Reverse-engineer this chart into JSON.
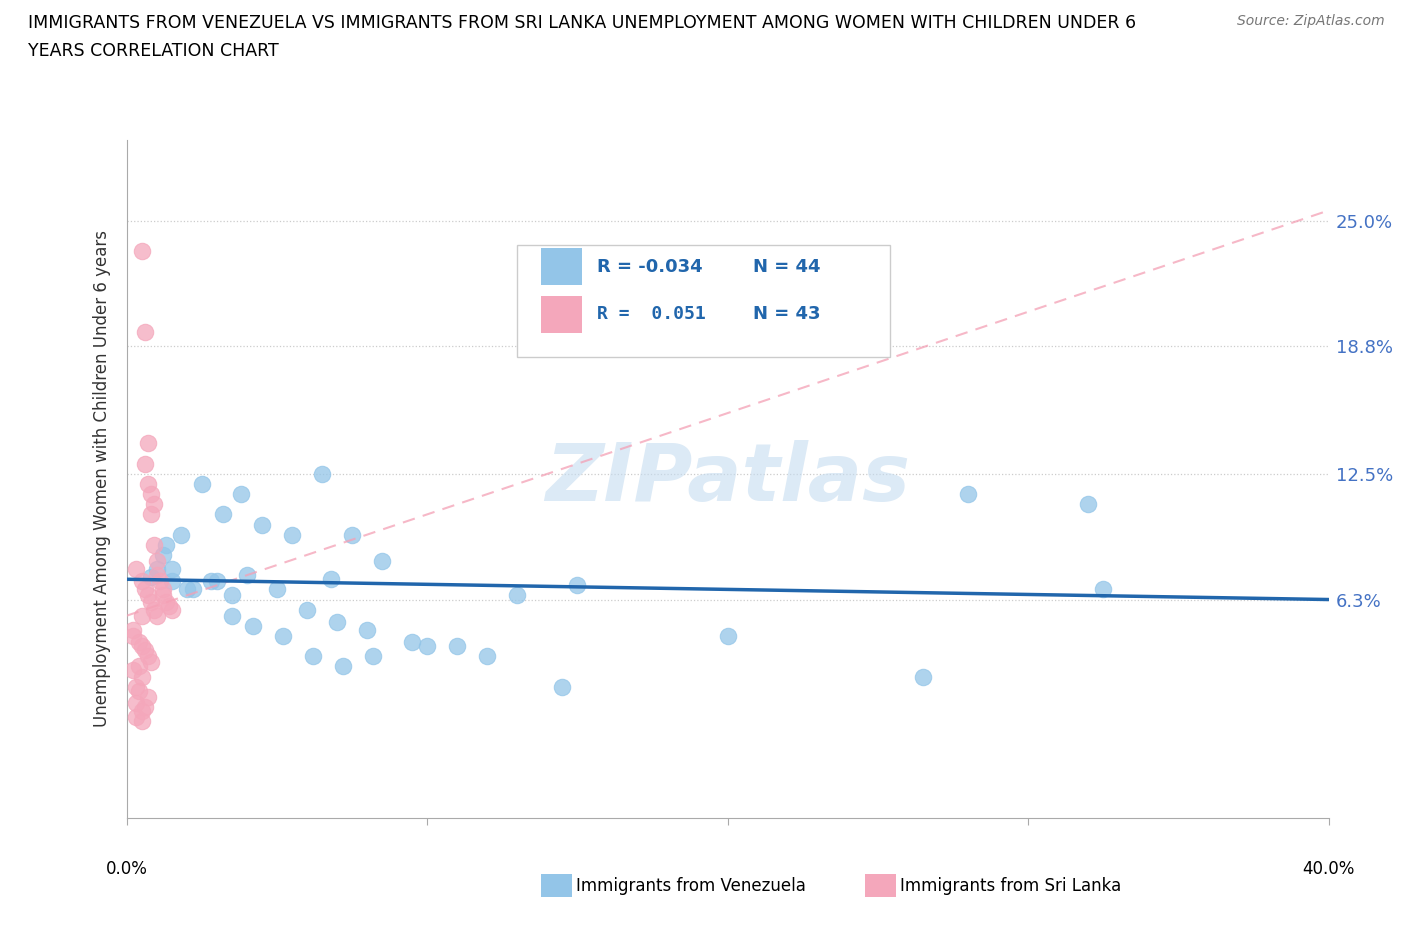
{
  "title_line1": "IMMIGRANTS FROM VENEZUELA VS IMMIGRANTS FROM SRI LANKA UNEMPLOYMENT AMONG WOMEN WITH CHILDREN UNDER 6",
  "title_line2": "YEARS CORRELATION CHART",
  "source": "Source: ZipAtlas.com",
  "ylabel": "Unemployment Among Women with Children Under 6 years",
  "xlim": [
    0.0,
    0.4
  ],
  "ylim": [
    -0.045,
    0.29
  ],
  "yticks": [
    0.063,
    0.125,
    0.188,
    0.25
  ],
  "ytick_labels": [
    "6.3%",
    "12.5%",
    "18.8%",
    "25.0%"
  ],
  "xtick_positions": [
    0.0,
    0.1,
    0.2,
    0.3,
    0.4
  ],
  "watermark_text": "ZIPatlas",
  "color_venezuela": "#93C5E8",
  "color_srilanka": "#F4A7BB",
  "color_trend_venezuela": "#2166AC",
  "color_trend_srilanka": "#F4A0B5",
  "venezuela_x": [
    0.008,
    0.01,
    0.012,
    0.013,
    0.015,
    0.018,
    0.02,
    0.022,
    0.025,
    0.028,
    0.03,
    0.032,
    0.035,
    0.035,
    0.038,
    0.04,
    0.042,
    0.045,
    0.05,
    0.052,
    0.055,
    0.06,
    0.062,
    0.065,
    0.068,
    0.07,
    0.072,
    0.075,
    0.08,
    0.082,
    0.085,
    0.095,
    0.1,
    0.11,
    0.12,
    0.13,
    0.145,
    0.15,
    0.2,
    0.265,
    0.28,
    0.32,
    0.325,
    0.015
  ],
  "venezuela_y": [
    0.074,
    0.078,
    0.085,
    0.09,
    0.072,
    0.095,
    0.068,
    0.068,
    0.12,
    0.072,
    0.072,
    0.105,
    0.055,
    0.065,
    0.115,
    0.075,
    0.05,
    0.1,
    0.068,
    0.045,
    0.095,
    0.058,
    0.035,
    0.125,
    0.073,
    0.052,
    0.03,
    0.095,
    0.048,
    0.035,
    0.082,
    0.042,
    0.04,
    0.04,
    0.035,
    0.065,
    0.02,
    0.07,
    0.045,
    0.025,
    0.115,
    0.11,
    0.068,
    0.078
  ],
  "srilanka_x": [
    0.002,
    0.002,
    0.003,
    0.003,
    0.003,
    0.004,
    0.004,
    0.004,
    0.005,
    0.005,
    0.005,
    0.005,
    0.005,
    0.005,
    0.005,
    0.006,
    0.006,
    0.006,
    0.006,
    0.006,
    0.007,
    0.007,
    0.007,
    0.007,
    0.007,
    0.008,
    0.008,
    0.008,
    0.008,
    0.009,
    0.009,
    0.009,
    0.01,
    0.01,
    0.01,
    0.011,
    0.012,
    0.012,
    0.013,
    0.014,
    0.015,
    0.002,
    0.003
  ],
  "srilanka_y": [
    0.048,
    0.028,
    0.02,
    0.012,
    0.005,
    0.042,
    0.03,
    0.018,
    0.235,
    0.072,
    0.055,
    0.04,
    0.025,
    0.008,
    0.003,
    0.195,
    0.13,
    0.068,
    0.038,
    0.01,
    0.14,
    0.12,
    0.065,
    0.035,
    0.015,
    0.115,
    0.105,
    0.062,
    0.032,
    0.11,
    0.09,
    0.058,
    0.082,
    0.075,
    0.055,
    0.072,
    0.068,
    0.065,
    0.062,
    0.06,
    0.058,
    0.045,
    0.078
  ],
  "trend_venezuela_x0": 0.0,
  "trend_venezuela_y0": 0.073,
  "trend_venezuela_x1": 0.4,
  "trend_venezuela_y1": 0.063,
  "trend_srilanka_x0": 0.0,
  "trend_srilanka_y0": 0.055,
  "trend_srilanka_x1": 0.4,
  "trend_srilanka_y1": 0.255
}
